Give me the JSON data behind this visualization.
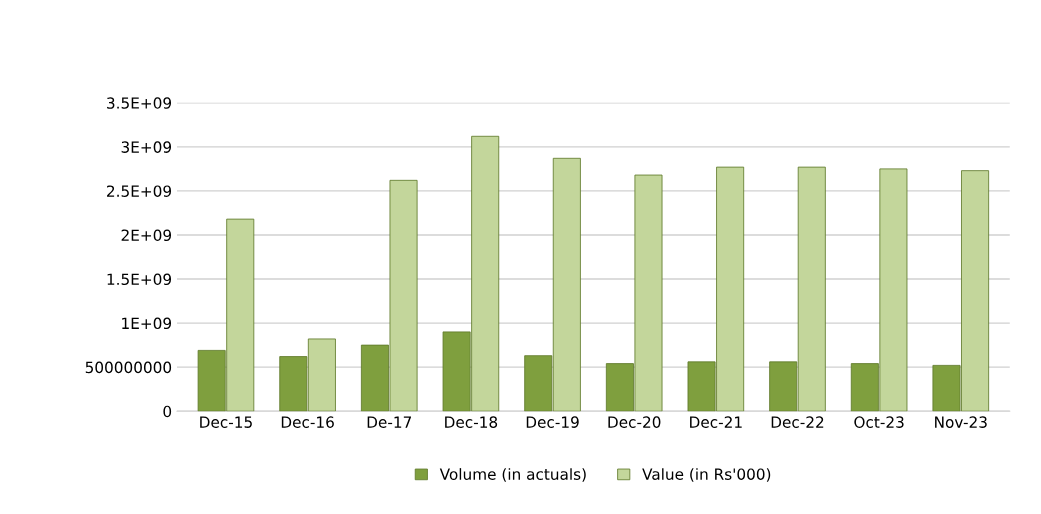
{
  "chart_data": {
    "type": "bar",
    "categories": [
      "Dec-15",
      "Dec-16",
      "De-17",
      "Dec-18",
      "Dec-19",
      "Dec-20",
      "Dec-21",
      "Dec-22",
      "Oct-23",
      "Nov-23"
    ],
    "series": [
      {
        "name": "Volume (in actuals)",
        "color": "#7f9f3e",
        "values": [
          690000000,
          620000000,
          750000000,
          900000000,
          630000000,
          540000000,
          560000000,
          560000000,
          540000000,
          520000000
        ]
      },
      {
        "name": "Value (in Rs'000)",
        "color": "#c3d69b",
        "values": [
          2180000000,
          820000000,
          2620000000,
          3120000000,
          2870000000,
          2680000000,
          2770000000,
          2770000000,
          2750000000,
          2730000000
        ]
      }
    ],
    "ylim": [
      0,
      3500000000
    ],
    "yticks": [
      {
        "value": 0,
        "label": "0"
      },
      {
        "value": 500000000,
        "label": "500000000"
      },
      {
        "value": 1000000000,
        "label": "1E+09"
      },
      {
        "value": 1500000000,
        "label": "1.5E+09"
      },
      {
        "value": 2000000000,
        "label": "2E+09"
      },
      {
        "value": 2500000000,
        "label": "2.5E+09"
      },
      {
        "value": 3000000000,
        "label": "3E+09"
      },
      {
        "value": 3500000000,
        "label": "3.5E+09"
      }
    ],
    "grid": "y",
    "legend": "bottom"
  }
}
